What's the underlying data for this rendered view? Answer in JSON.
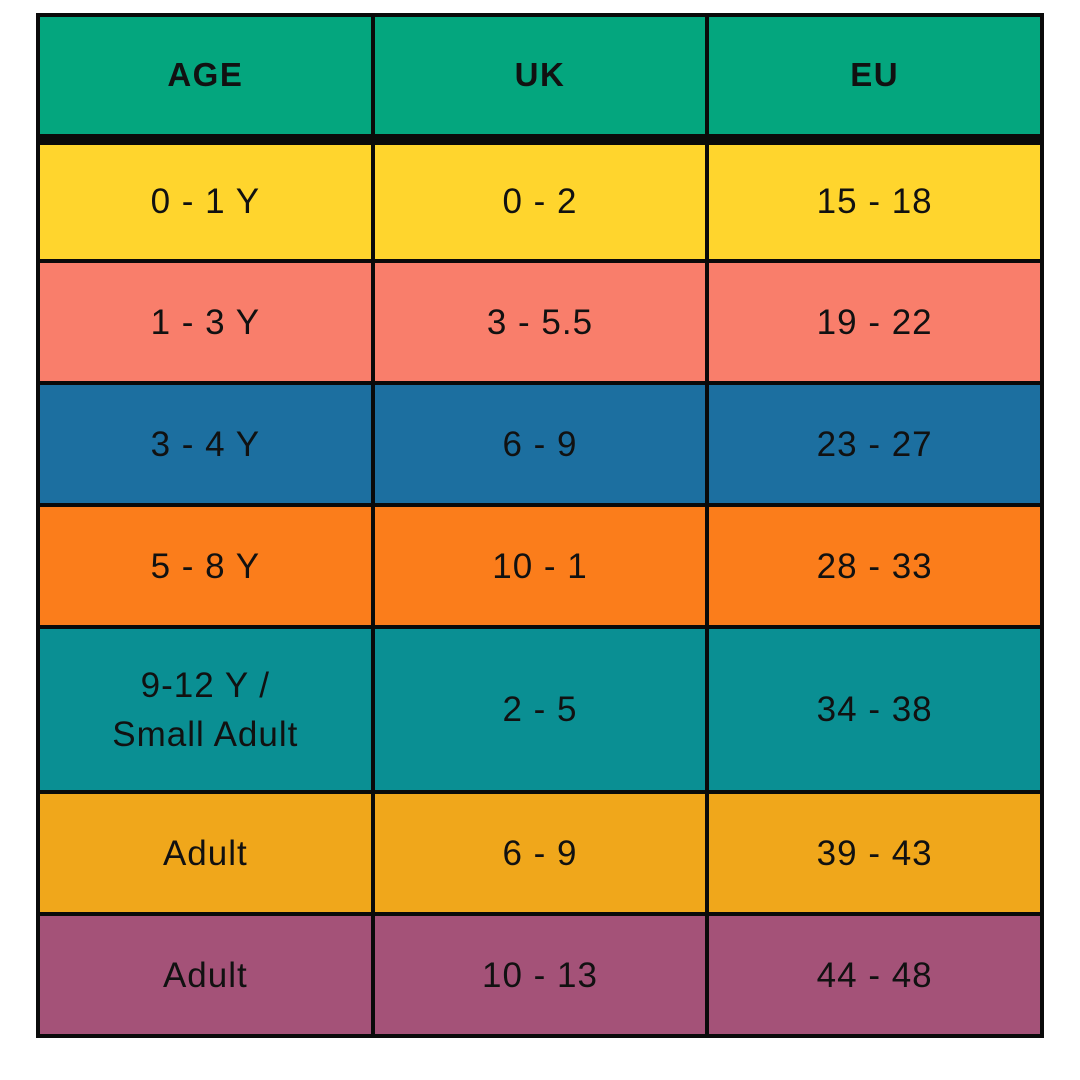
{
  "chart_data": {
    "type": "table",
    "columns": [
      "AGE",
      "UK",
      "EU"
    ],
    "rows": [
      {
        "age": "0 - 1 Y",
        "uk": "0 - 2",
        "eu": "15 - 18",
        "row_color": "#FFD52D"
      },
      {
        "age": "1 - 3 Y",
        "uk": "3 - 5.5",
        "eu": "19 - 22",
        "row_color": "#F97E6B"
      },
      {
        "age": "3 - 4 Y",
        "uk": "6 - 9",
        "eu": "23 - 27",
        "row_color": "#1C6FA0"
      },
      {
        "age": "5 - 8 Y",
        "uk": "10 - 1",
        "eu": "28 - 33",
        "row_color": "#FB7D1B"
      },
      {
        "age": "9-12 Y /\nSmall Adult",
        "uk": "2 - 5",
        "eu": "34 - 38",
        "row_color": "#0A8F93"
      },
      {
        "age": "Adult",
        "uk": "6 - 9",
        "eu": "39 - 43",
        "row_color": "#F0A71B"
      },
      {
        "age": "Adult",
        "uk": "10 - 13",
        "eu": "44 - 48",
        "row_color": "#A45278"
      }
    ],
    "header_color": "#04A67E",
    "border_color": "#0A0A0A",
    "background": "#FFFFFF",
    "text_color": "#111111",
    "legend_position": "none",
    "grid": true
  }
}
